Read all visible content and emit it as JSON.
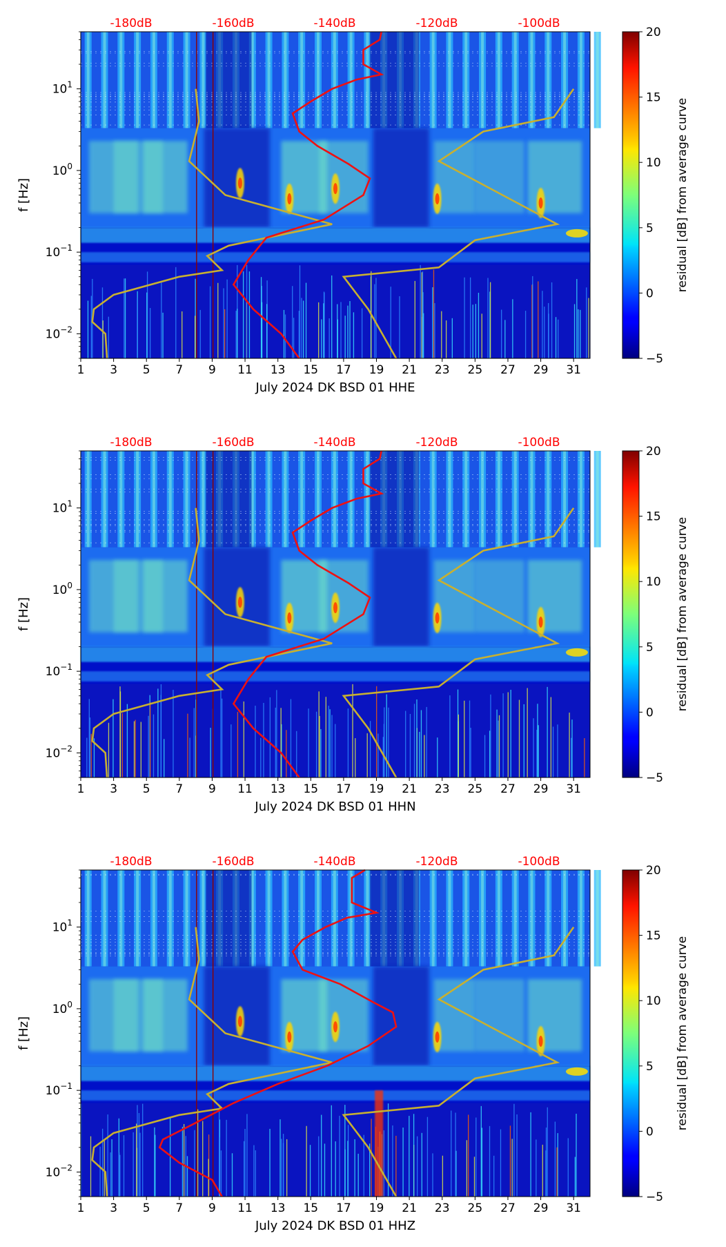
{
  "chart_data": [
    {
      "type": "heatmap",
      "xlabel": "July 2024 DK BSD 01 HHE",
      "ylabel": "f [Hz]",
      "x_ticks": [
        "1",
        "3",
        "5",
        "7",
        "9",
        "11",
        "13",
        "15",
        "17",
        "19",
        "21",
        "23",
        "25",
        "27",
        "29",
        "31"
      ],
      "y_ticks": [
        "10^-2",
        "10^-1",
        "10^0",
        "10^1"
      ],
      "xlim": [
        1,
        32
      ],
      "ylim": [
        0.005,
        50
      ],
      "y_scale": "log",
      "top_axis_labels": [
        "-180dB",
        "-160dB",
        "-140dB",
        "-120dB",
        "-100dB"
      ],
      "top_axis_color": "#ff0000",
      "colorbar": {
        "label": "residual [dB] from average curve",
        "min": -5,
        "max": 20,
        "ticks": [
          "−5",
          "0",
          "5",
          "10",
          "15",
          "20"
        ],
        "colormap": "jet"
      },
      "red_curve_points": [
        [
          19.3,
          50
        ],
        [
          19.2,
          40
        ],
        [
          18.2,
          30
        ],
        [
          18.2,
          20
        ],
        [
          19.3,
          15
        ],
        [
          17.8,
          13
        ],
        [
          16.3,
          10
        ],
        [
          15,
          7
        ],
        [
          13.9,
          5
        ],
        [
          14.3,
          3
        ],
        [
          15.4,
          2
        ],
        [
          17.3,
          1.2
        ],
        [
          18.6,
          0.8
        ],
        [
          18.2,
          0.5
        ],
        [
          15.8,
          0.25
        ],
        [
          12.3,
          0.15
        ],
        [
          11.2,
          0.08
        ],
        [
          10.3,
          0.04
        ],
        [
          11.5,
          0.02
        ],
        [
          13.2,
          0.01
        ],
        [
          14.3,
          0.005
        ]
      ],
      "gold_curve_points": [
        [
          8.0,
          10
        ],
        [
          8.2,
          4
        ],
        [
          7.6,
          1.3
        ],
        [
          9.8,
          0.5
        ],
        [
          16.3,
          0.22
        ],
        [
          10,
          0.12
        ],
        [
          8.7,
          0.09
        ],
        [
          9.6,
          0.06
        ],
        [
          7,
          0.05
        ],
        [
          3,
          0.03
        ],
        [
          1.8,
          0.02
        ],
        [
          1.7,
          0.014
        ],
        [
          2.5,
          0.01
        ],
        [
          2.6,
          0.005
        ]
      ],
      "gold_curve2_points": [
        [
          31,
          10
        ],
        [
          29.8,
          4.5
        ],
        [
          25.5,
          3
        ],
        [
          22.8,
          1.3
        ],
        [
          30,
          0.22
        ],
        [
          25,
          0.14
        ],
        [
          22.8,
          0.065
        ],
        [
          17,
          0.05
        ],
        [
          18.5,
          0.02
        ],
        [
          20.2,
          0.005
        ]
      ]
    },
    {
      "type": "heatmap",
      "xlabel": "July 2024 DK BSD 01 HHN",
      "ylabel": "f [Hz]",
      "x_ticks": [
        "1",
        "3",
        "5",
        "7",
        "9",
        "11",
        "13",
        "15",
        "17",
        "19",
        "21",
        "23",
        "25",
        "27",
        "29",
        "31"
      ],
      "y_ticks": [
        "10^-2",
        "10^-1",
        "10^0",
        "10^1"
      ],
      "xlim": [
        1,
        32
      ],
      "ylim": [
        0.005,
        50
      ],
      "y_scale": "log",
      "top_axis_labels": [
        "-180dB",
        "-160dB",
        "-140dB",
        "-120dB",
        "-100dB"
      ],
      "top_axis_color": "#ff0000",
      "colorbar": {
        "label": "residual [dB] from average curve",
        "min": -5,
        "max": 20,
        "ticks": [
          "−5",
          "0",
          "5",
          "10",
          "15",
          "20"
        ],
        "colormap": "jet"
      },
      "red_curve_points": [
        [
          19.3,
          50
        ],
        [
          19.2,
          40
        ],
        [
          18.2,
          30
        ],
        [
          18.2,
          20
        ],
        [
          19.3,
          15
        ],
        [
          17.8,
          13
        ],
        [
          16.3,
          10
        ],
        [
          15,
          7
        ],
        [
          13.9,
          5
        ],
        [
          14.3,
          3
        ],
        [
          15.4,
          2
        ],
        [
          17.3,
          1.2
        ],
        [
          18.6,
          0.8
        ],
        [
          18.2,
          0.5
        ],
        [
          15.8,
          0.25
        ],
        [
          12.3,
          0.15
        ],
        [
          11.2,
          0.08
        ],
        [
          10.3,
          0.04
        ],
        [
          11.5,
          0.02
        ],
        [
          13.2,
          0.01
        ],
        [
          14.3,
          0.005
        ]
      ],
      "gold_curve_points": [
        [
          8.0,
          10
        ],
        [
          8.2,
          4
        ],
        [
          7.6,
          1.3
        ],
        [
          9.8,
          0.5
        ],
        [
          16.3,
          0.22
        ],
        [
          10,
          0.12
        ],
        [
          8.7,
          0.09
        ],
        [
          9.6,
          0.06
        ],
        [
          7,
          0.05
        ],
        [
          3,
          0.03
        ],
        [
          1.8,
          0.02
        ],
        [
          1.7,
          0.014
        ],
        [
          2.5,
          0.01
        ],
        [
          2.6,
          0.005
        ]
      ],
      "gold_curve2_points": [
        [
          31,
          10
        ],
        [
          29.8,
          4.5
        ],
        [
          25.5,
          3
        ],
        [
          22.8,
          1.3
        ],
        [
          30,
          0.22
        ],
        [
          25,
          0.14
        ],
        [
          22.8,
          0.065
        ],
        [
          17,
          0.05
        ],
        [
          18.5,
          0.02
        ],
        [
          20.2,
          0.005
        ]
      ]
    },
    {
      "type": "heatmap",
      "xlabel": "July 2024 DK BSD 01 HHZ",
      "ylabel": "f [Hz]",
      "x_ticks": [
        "1",
        "3",
        "5",
        "7",
        "9",
        "11",
        "13",
        "15",
        "17",
        "19",
        "21",
        "23",
        "25",
        "27",
        "29",
        "31"
      ],
      "y_ticks": [
        "10^-2",
        "10^-1",
        "10^0",
        "10^1"
      ],
      "xlim": [
        1,
        32
      ],
      "ylim": [
        0.005,
        50
      ],
      "y_scale": "log",
      "top_axis_labels": [
        "-180dB",
        "-160dB",
        "-140dB",
        "-120dB",
        "-100dB"
      ],
      "top_axis_color": "#ff0000",
      "colorbar": {
        "label": "residual [dB] from average curve",
        "min": -5,
        "max": 20,
        "ticks": [
          "−5",
          "0",
          "5",
          "10",
          "15",
          "20"
        ],
        "colormap": "jet"
      },
      "red_curve_points": [
        [
          18.3,
          50
        ],
        [
          17.5,
          40
        ],
        [
          17.5,
          20
        ],
        [
          19,
          15
        ],
        [
          17.2,
          13
        ],
        [
          15.9,
          10
        ],
        [
          14.5,
          7
        ],
        [
          13.9,
          5
        ],
        [
          14.5,
          3
        ],
        [
          16.8,
          2
        ],
        [
          18.8,
          1.2
        ],
        [
          20,
          0.9
        ],
        [
          20.2,
          0.6
        ],
        [
          18.5,
          0.35
        ],
        [
          16,
          0.2
        ],
        [
          13,
          0.12
        ],
        [
          10.3,
          0.07
        ],
        [
          8,
          0.04
        ],
        [
          6,
          0.025
        ],
        [
          5.8,
          0.02
        ],
        [
          7,
          0.013
        ],
        [
          9,
          0.008
        ],
        [
          9.6,
          0.005
        ]
      ],
      "gold_curve_points": [
        [
          8.0,
          10
        ],
        [
          8.2,
          4
        ],
        [
          7.6,
          1.3
        ],
        [
          9.8,
          0.5
        ],
        [
          16.3,
          0.22
        ],
        [
          10,
          0.12
        ],
        [
          8.7,
          0.09
        ],
        [
          9.6,
          0.06
        ],
        [
          7,
          0.05
        ],
        [
          3,
          0.03
        ],
        [
          1.8,
          0.02
        ],
        [
          1.7,
          0.014
        ],
        [
          2.5,
          0.01
        ],
        [
          2.6,
          0.005
        ]
      ],
      "gold_curve2_points": [
        [
          31,
          10
        ],
        [
          29.8,
          4.5
        ],
        [
          25.5,
          3
        ],
        [
          22.8,
          1.3
        ],
        [
          30,
          0.22
        ],
        [
          25,
          0.14
        ],
        [
          22.8,
          0.065
        ],
        [
          17,
          0.05
        ],
        [
          18.5,
          0.02
        ],
        [
          20.2,
          0.005
        ]
      ]
    }
  ]
}
